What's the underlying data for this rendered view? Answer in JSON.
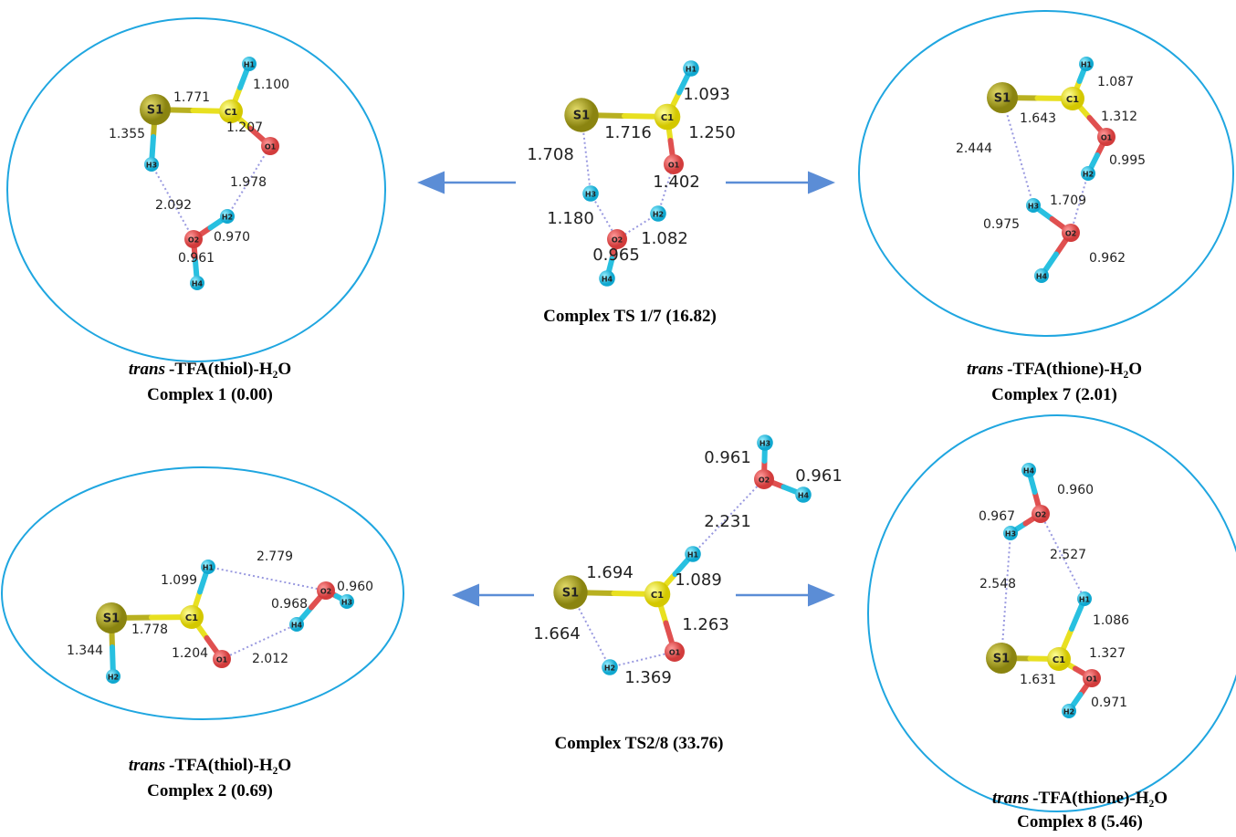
{
  "panels": [
    {
      "atoms": [
        "S1",
        "C1",
        "H1",
        "O1",
        "H3",
        "O2",
        "H2",
        "H4"
      ],
      "bonds": [
        "1.771",
        "1.100",
        "1.207",
        "1.355",
        "1.978",
        "2.092",
        "0.970",
        "0.961"
      ],
      "caption": {
        "italic": "trans",
        "formula": "-TFA(thiol)-H₂O",
        "name": "Complex 1 (0.00)"
      }
    },
    {
      "atoms": [
        "S1",
        "C1",
        "H1",
        "O1",
        "H3",
        "O2",
        "H2",
        "H4"
      ],
      "bonds": [
        "1.093",
        "1.716",
        "1.250",
        "1.708",
        "1.402",
        "1.180",
        "1.082",
        "0.965"
      ],
      "caption": {
        "name": "Complex TS 1/7 (16.82)"
      }
    },
    {
      "atoms": [
        "S1",
        "C1",
        "H1",
        "O1",
        "H2",
        "H3",
        "O2",
        "H4"
      ],
      "bonds": [
        "1.087",
        "1.643",
        "1.312",
        "2.444",
        "0.995",
        "1.709",
        "0.975",
        "0.962"
      ],
      "caption": {
        "italic": "trans",
        "formula": "-TFA(thione)-H₂O",
        "name": "Complex 7 (2.01)"
      }
    },
    {
      "atoms": [
        "S1",
        "C1",
        "H1",
        "O1",
        "H2",
        "H4",
        "O2",
        "H3"
      ],
      "bonds": [
        "2.779",
        "1.099",
        "0.960",
        "0.968",
        "1.778",
        "1.344",
        "1.204",
        "2.012"
      ],
      "caption": {
        "italic": "trans",
        "formula": "-TFA(thiol)-H₂O",
        "name": "Complex 2 (0.69)"
      }
    },
    {
      "atoms": [
        "S1",
        "C1",
        "H1",
        "O1",
        "H2",
        "O2",
        "H3",
        "H4"
      ],
      "bonds": [
        "0.961",
        "0.961",
        "2.231",
        "1.694",
        "1.089",
        "1.263",
        "1.664",
        "1.369"
      ],
      "caption": {
        "name": "Complex TS2/8 (33.76)"
      }
    },
    {
      "atoms": [
        "S1",
        "C1",
        "H1",
        "O1",
        "H2",
        "H3",
        "O2",
        "H4"
      ],
      "bonds": [
        "0.960",
        "0.967",
        "2.527",
        "2.548",
        "1.086",
        "1.631",
        "1.327",
        "0.971"
      ],
      "caption": {
        "italic": "trans",
        "formula": "-TFA(thione)-H₂O",
        "name": "Complex 8 (5.46)"
      }
    }
  ]
}
